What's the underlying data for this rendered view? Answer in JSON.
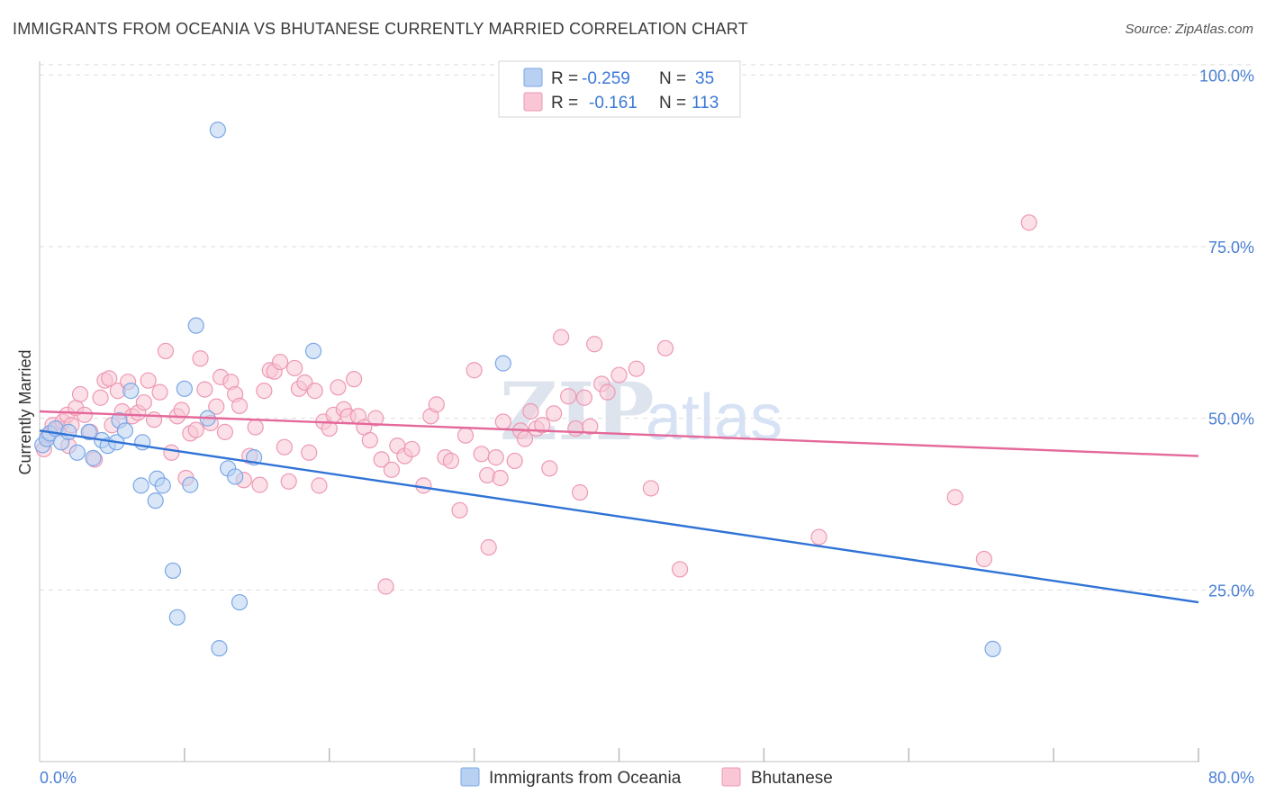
{
  "title": "IMMIGRANTS FROM OCEANIA VS BHUTANESE CURRENTLY MARRIED CORRELATION CHART",
  "source": "Source: ZipAtlas.com",
  "watermark": {
    "zip": "ZIP",
    "atlas": "atlas"
  },
  "colors": {
    "blue_fill": "#b8d1f3",
    "blue_stroke": "#7ba7e6",
    "blue_line": "#2f73d6",
    "pink_fill": "#f8c6d5",
    "pink_stroke": "#ee99b4",
    "pink_line": "#e4699a",
    "axis_text": "#4a7fd4",
    "grid": "#dddddd"
  },
  "legend": {
    "rows": [
      {
        "r_label": "R =",
        "r_value": "-0.259",
        "n_label": "N =",
        "n_value": "35",
        "series": "blue"
      },
      {
        "r_label": "R =",
        "r_value": "-0.161",
        "n_label": "N =",
        "n_value": "113",
        "series": "pink"
      }
    ]
  },
  "bottom_legend": [
    "Immigrants from Oceania",
    "Bhutanese"
  ],
  "chart_data": {
    "type": "scatter",
    "title": "IMMIGRANTS FROM OCEANIA VS BHUTANESE CURRENTLY MARRIED CORRELATION CHART",
    "xlabel": "",
    "ylabel": "Currently Married",
    "xlim": [
      0,
      80
    ],
    "ylim": [
      0,
      102
    ],
    "x_tick_labels": [
      "0.0%",
      "80.0%"
    ],
    "y_ticks": [
      25,
      50,
      75,
      100
    ],
    "y_tick_labels": [
      "25.0%",
      "50.0%",
      "75.0%",
      "100.0%"
    ],
    "grid": true,
    "series": [
      {
        "name": "Immigrants from Oceania",
        "color": "blue",
        "trend": {
          "x": [
            0,
            80
          ],
          "y": [
            48.2,
            23.2
          ]
        },
        "points": [
          [
            0.2,
            46.1
          ],
          [
            0.5,
            47.0
          ],
          [
            0.7,
            47.8
          ],
          [
            1.1,
            48.5
          ],
          [
            1.5,
            46.5
          ],
          [
            2.0,
            48.0
          ],
          [
            2.6,
            45.0
          ],
          [
            3.4,
            48.0
          ],
          [
            3.7,
            44.2
          ],
          [
            4.3,
            46.8
          ],
          [
            4.7,
            46.0
          ],
          [
            5.3,
            46.5
          ],
          [
            5.5,
            49.7
          ],
          [
            5.9,
            48.2
          ],
          [
            6.3,
            54.0
          ],
          [
            7.1,
            46.5
          ],
          [
            7.0,
            40.2
          ],
          [
            8.0,
            38.0
          ],
          [
            8.1,
            41.2
          ],
          [
            8.5,
            40.2
          ],
          [
            9.2,
            27.8
          ],
          [
            9.5,
            21.0
          ],
          [
            10.0,
            54.3
          ],
          [
            10.4,
            40.3
          ],
          [
            10.8,
            63.5
          ],
          [
            11.6,
            50.0
          ],
          [
            12.3,
            92.0
          ],
          [
            12.4,
            16.5
          ],
          [
            13.0,
            42.7
          ],
          [
            13.5,
            41.5
          ],
          [
            13.8,
            23.2
          ],
          [
            14.8,
            44.3
          ],
          [
            18.9,
            59.8
          ],
          [
            32.0,
            58.0
          ],
          [
            65.8,
            16.4
          ]
        ]
      },
      {
        "name": "Bhutanese",
        "color": "pink",
        "trend": {
          "x": [
            0,
            80
          ],
          "y": [
            51.0,
            44.5
          ]
        },
        "points": [
          [
            0.3,
            45.5
          ],
          [
            0.6,
            47.5
          ],
          [
            0.9,
            49.0
          ],
          [
            1.3,
            48.5
          ],
          [
            1.6,
            49.5
          ],
          [
            1.9,
            50.5
          ],
          [
            2.2,
            49.0
          ],
          [
            2.5,
            51.5
          ],
          [
            2.8,
            53.5
          ],
          [
            3.1,
            50.5
          ],
          [
            3.5,
            48.0
          ],
          [
            3.8,
            44.0
          ],
          [
            4.2,
            53.0
          ],
          [
            4.5,
            55.5
          ],
          [
            4.8,
            55.8
          ],
          [
            5.0,
            49.0
          ],
          [
            5.4,
            54.0
          ],
          [
            5.7,
            51.0
          ],
          [
            6.1,
            55.3
          ],
          [
            6.4,
            50.3
          ],
          [
            6.8,
            50.8
          ],
          [
            7.2,
            52.3
          ],
          [
            7.5,
            55.5
          ],
          [
            7.9,
            49.8
          ],
          [
            8.3,
            53.8
          ],
          [
            8.7,
            59.8
          ],
          [
            9.1,
            45.0
          ],
          [
            9.5,
            50.3
          ],
          [
            9.8,
            51.2
          ],
          [
            10.1,
            41.3
          ],
          [
            10.4,
            47.8
          ],
          [
            10.8,
            48.3
          ],
          [
            11.1,
            58.7
          ],
          [
            11.4,
            54.2
          ],
          [
            11.8,
            49.3
          ],
          [
            12.2,
            51.7
          ],
          [
            12.5,
            56.0
          ],
          [
            12.8,
            48.0
          ],
          [
            13.2,
            55.3
          ],
          [
            13.5,
            53.5
          ],
          [
            13.8,
            51.8
          ],
          [
            14.1,
            41.0
          ],
          [
            14.5,
            44.5
          ],
          [
            14.9,
            48.7
          ],
          [
            15.2,
            40.3
          ],
          [
            15.5,
            54.0
          ],
          [
            15.9,
            57.0
          ],
          [
            16.2,
            56.8
          ],
          [
            16.6,
            58.2
          ],
          [
            16.9,
            45.8
          ],
          [
            17.2,
            40.8
          ],
          [
            17.6,
            57.3
          ],
          [
            17.9,
            54.3
          ],
          [
            18.3,
            55.2
          ],
          [
            18.6,
            45.0
          ],
          [
            19.0,
            54.0
          ],
          [
            19.3,
            40.2
          ],
          [
            19.6,
            49.5
          ],
          [
            20.0,
            48.5
          ],
          [
            20.3,
            50.5
          ],
          [
            20.6,
            54.5
          ],
          [
            21.0,
            51.3
          ],
          [
            21.3,
            50.3
          ],
          [
            21.7,
            55.7
          ],
          [
            22.0,
            50.3
          ],
          [
            22.4,
            48.7
          ],
          [
            22.8,
            46.8
          ],
          [
            23.2,
            50.0
          ],
          [
            23.6,
            44.0
          ],
          [
            23.9,
            25.5
          ],
          [
            24.3,
            42.5
          ],
          [
            24.7,
            46.0
          ],
          [
            25.2,
            44.5
          ],
          [
            25.7,
            45.5
          ],
          [
            26.5,
            40.2
          ],
          [
            27.0,
            50.3
          ],
          [
            27.4,
            52.0
          ],
          [
            28.0,
            44.3
          ],
          [
            28.4,
            43.8
          ],
          [
            29.0,
            36.6
          ],
          [
            29.4,
            47.5
          ],
          [
            30.0,
            57.0
          ],
          [
            30.5,
            44.8
          ],
          [
            30.9,
            41.7
          ],
          [
            31.0,
            31.2
          ],
          [
            31.5,
            44.3
          ],
          [
            31.8,
            41.3
          ],
          [
            32.0,
            49.5
          ],
          [
            32.8,
            43.8
          ],
          [
            33.2,
            48.2
          ],
          [
            33.5,
            47.0
          ],
          [
            33.9,
            51.0
          ],
          [
            34.3,
            48.5
          ],
          [
            34.7,
            49.0
          ],
          [
            35.2,
            42.7
          ],
          [
            35.5,
            50.7
          ],
          [
            36.0,
            61.8
          ],
          [
            36.5,
            53.2
          ],
          [
            37.0,
            48.5
          ],
          [
            37.3,
            39.2
          ],
          [
            37.6,
            53.0
          ],
          [
            38.0,
            48.8
          ],
          [
            38.3,
            60.8
          ],
          [
            38.8,
            55.0
          ],
          [
            39.2,
            53.8
          ],
          [
            40.0,
            56.3
          ],
          [
            41.2,
            57.2
          ],
          [
            42.2,
            39.8
          ],
          [
            43.2,
            60.2
          ],
          [
            44.2,
            28.0
          ],
          [
            53.8,
            32.7
          ],
          [
            63.2,
            38.5
          ],
          [
            65.2,
            29.5
          ],
          [
            68.3,
            78.5
          ],
          [
            2.0,
            46.0
          ]
        ]
      }
    ]
  }
}
